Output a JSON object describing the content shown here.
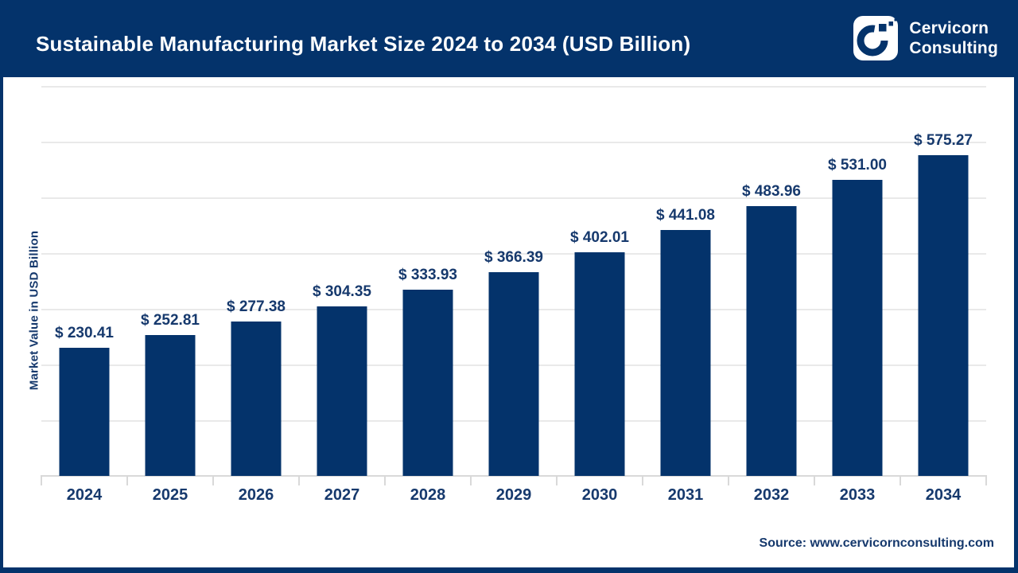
{
  "header": {
    "title": "Sustainable Manufacturing Market Size 2024 to 2034 (USD Billion)",
    "brand": {
      "line1": "Cervicorn",
      "line2": "Consulting"
    }
  },
  "chart_data": {
    "type": "bar",
    "title": "Sustainable Manufacturing Market Size 2024 to 2034 (USD Billion)",
    "categories": [
      "2024",
      "2025",
      "2026",
      "2027",
      "2028",
      "2029",
      "2030",
      "2031",
      "2032",
      "2033",
      "2034"
    ],
    "values": [
      230.41,
      252.81,
      277.38,
      304.35,
      333.93,
      366.39,
      402.01,
      441.08,
      483.96,
      531.0,
      575.27
    ],
    "value_labels": [
      "$ 230.41",
      "$ 252.81",
      "$ 277.38",
      "$ 304.35",
      "$ 333.93",
      "$ 366.39",
      "$ 402.01",
      "$ 441.08",
      "$ 483.96",
      "$ 531.00",
      "$ 575.27"
    ],
    "xlabel": "",
    "ylabel": "Market Value in USD Billion",
    "ylim": [
      0,
      700
    ],
    "grid_step": 100,
    "grid": "horizontal",
    "legend": "none",
    "bar_color": "#04336b"
  },
  "footer": {
    "source": "Source: www.cervicornconsulting.com"
  },
  "colors": {
    "navy": "#04336b",
    "bar": "#04336b",
    "text": "#16396d",
    "gridline": "#e9e9e9",
    "axis": "#d9d9d9",
    "header_text": "#ffffff",
    "background": "#ffffff"
  }
}
